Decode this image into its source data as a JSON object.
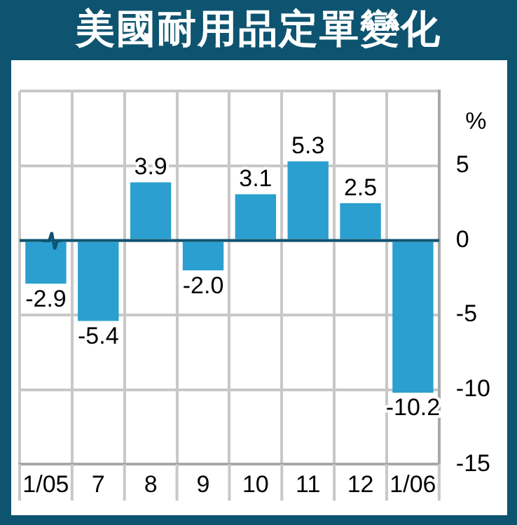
{
  "chart_data": {
    "type": "bar",
    "title": "美國耐用品定單變化",
    "ylabel": "%",
    "categories": [
      "1/05",
      "7",
      "8",
      "9",
      "10",
      "11",
      "12",
      "1/06"
    ],
    "values": [
      -2.9,
      -5.4,
      3.9,
      -2.0,
      3.1,
      5.3,
      2.5,
      -10.2
    ],
    "value_labels": [
      "-2.9",
      "-5.4",
      "3.9",
      "-2.0",
      "3.1",
      "5.3",
      "2.5",
      "-10.2"
    ],
    "color": "#2a9fd0",
    "ylim": [
      -15,
      10
    ],
    "yticks": [
      {
        "value": 10,
        "label": null
      },
      5,
      0,
      -5,
      -10,
      -15
    ],
    "ref_lines": [
      {
        "axis": "y",
        "value": 0,
        "color": "#0e5470"
      }
    ],
    "grid": true,
    "legend": false
  }
}
